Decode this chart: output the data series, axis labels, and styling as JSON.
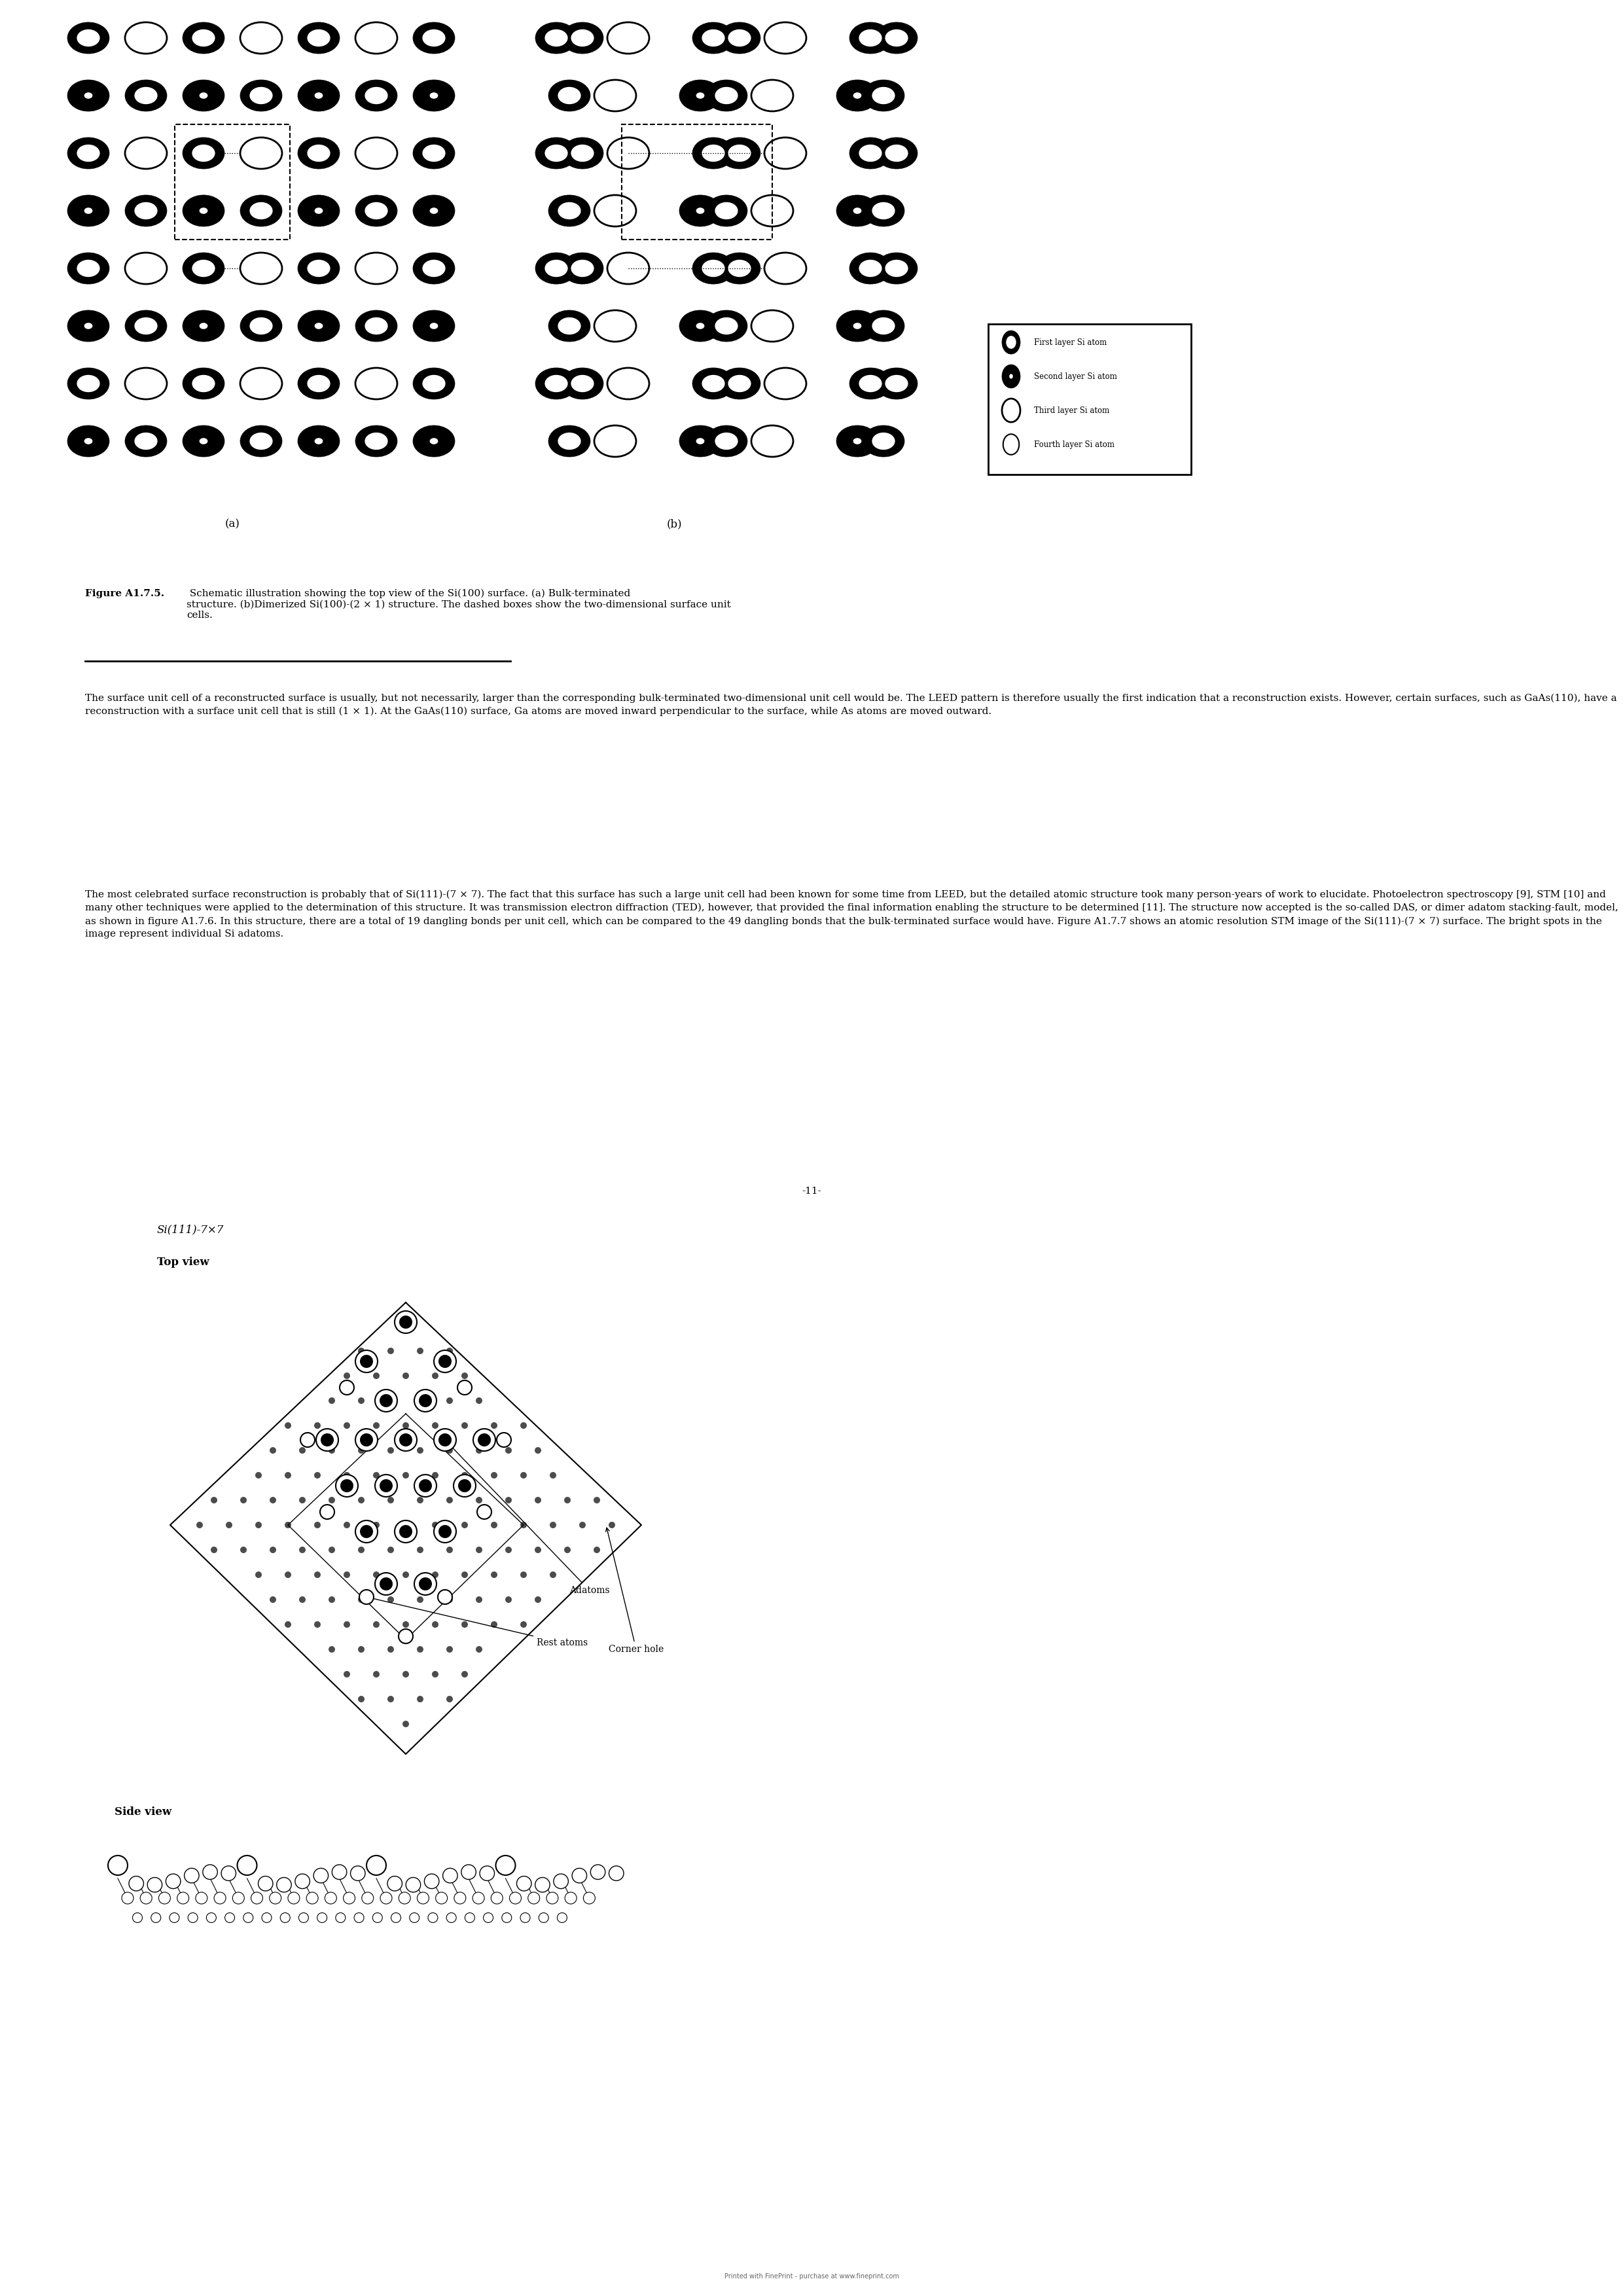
{
  "figure_width": 24.8,
  "figure_height": 35.08,
  "background_color": "#ffffff",
  "caption_bold": "Figure A1.7.5.",
  "caption_normal": " Schematic illustration showing the top view of the Si(100) surface. (a) Bulk-terminated\nstructure. (b)Dimerized Si(100)-(2 × 1) structure. The dashed boxes show the two-dimensional surface unit\ncells.",
  "label_a": "(a)",
  "label_b": "(b)",
  "legend_labels": [
    "First layer Si atom",
    "Second layer Si atom",
    "Third layer Si atom",
    "Fourth layer Si atom"
  ],
  "para1": "The surface unit cell of a reconstructed surface is usually, but not necessarily, larger than the corresponding bulk-terminated two-dimensional unit cell would be. The LEED pattern is therefore usually the first indication that a reconstruction exists. However, certain surfaces, such as GaAs(110), have a reconstruction with a surface unit cell that is still (1 × 1). At the GaAs(110) surface, Ga atoms are moved inward perpendicular to the surface, while As atoms are moved outward.",
  "para2": "The most celebrated surface reconstruction is probably that of Si(111)-(7 × 7). The fact that this surface has such a large unit cell had been known for some time from LEED, but the detailed atomic structure took many person-years of work to elucidate. Photoelectron spectroscopy [9], STM [10] and many other techniques were applied to the determination of this structure. It was transmission electron diffraction (TED), however, that provided the final information enabling the structure to be determined [11]. The structure now accepted is the so-called DAS, or dimer adatom stacking-fault, model, as shown in figure A1.7.6. In this structure, there are a total of 19 dangling bonds per unit cell, which can be compared to the 49 dangling bonds that the bulk-terminated surface would have. Figure A1.7.7 shows an atomic resolution STM image of the Si(111)-(7 × 7) surface. The bright spots in the image represent individual Si adatoms.",
  "page_number": "-11-",
  "footer": "Printed with FinePrint - purchase at www.fineprint.com",
  "si111_label": "Si(111)-7×7",
  "top_view_label": "Top view",
  "side_view_label": "Side view",
  "adatoms_label": "Adatoms",
  "rest_atoms_label": "Rest atoms",
  "corner_hole_label": "Corner hole"
}
